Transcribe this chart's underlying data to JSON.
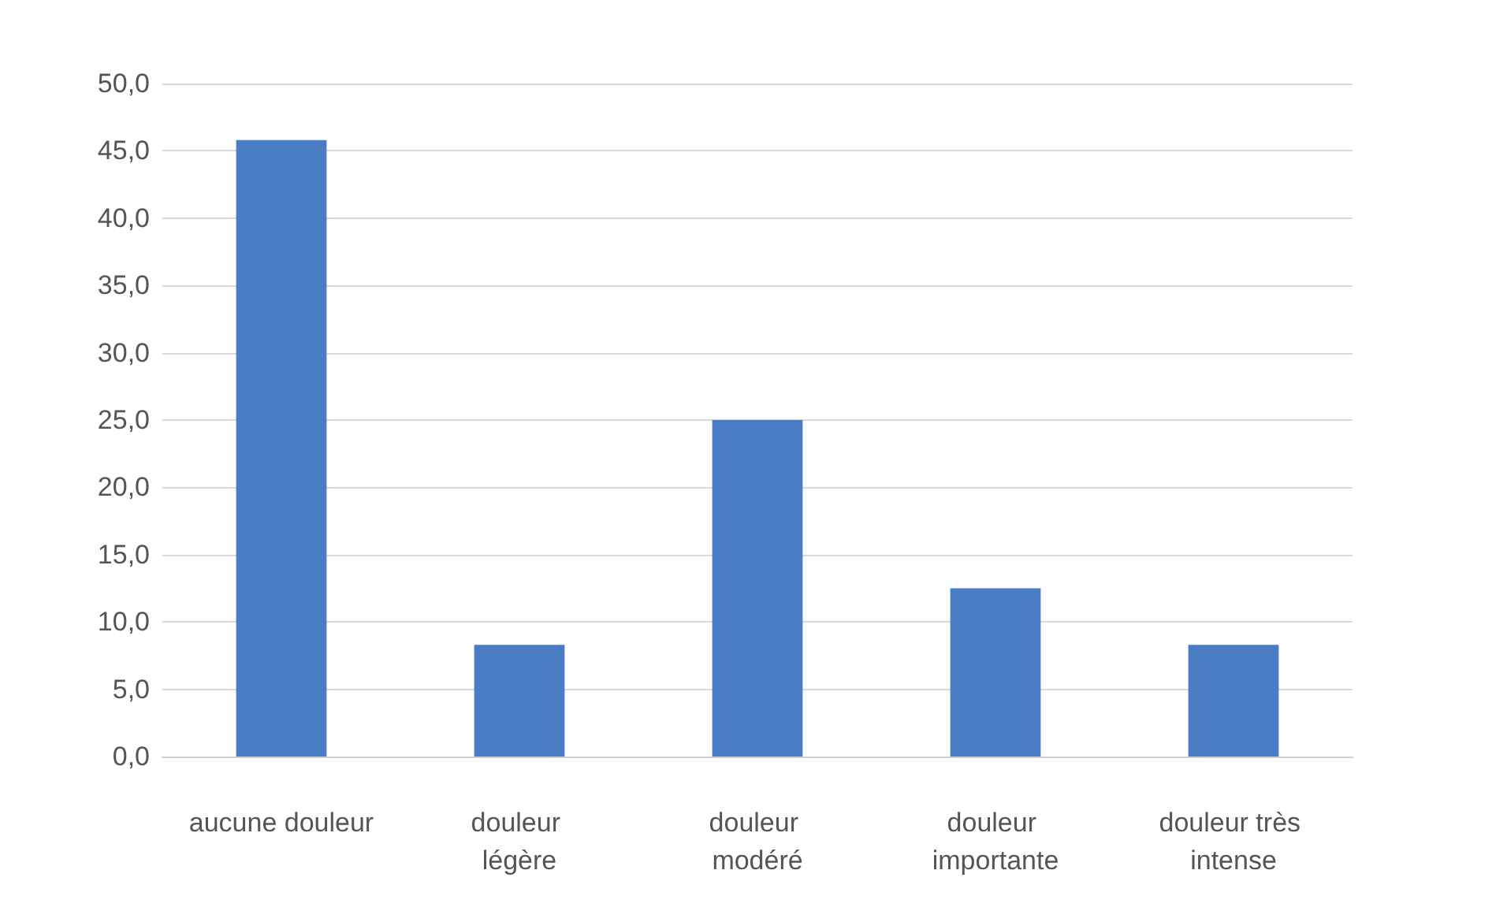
{
  "chart_data": {
    "type": "bar",
    "categories": [
      "aucune douleur",
      "douleur légère",
      "douleur modéré",
      "douleur importante",
      "douleur très intense"
    ],
    "values": [
      45.8,
      8.3,
      25.0,
      12.5,
      8.3
    ],
    "color": "#4a7cc4",
    "ylim": [
      0,
      50
    ],
    "yticks": [
      {
        "value": 0,
        "label": "0,0"
      },
      {
        "value": 5,
        "label": "5,0"
      },
      {
        "value": 10,
        "label": "10,0"
      },
      {
        "value": 15,
        "label": "15,0"
      },
      {
        "value": 20,
        "label": "20,0"
      },
      {
        "value": 25,
        "label": "25,0"
      },
      {
        "value": 30,
        "label": "30,0"
      },
      {
        "value": 35,
        "label": "35,0"
      },
      {
        "value": 40,
        "label": "40,0"
      },
      {
        "value": 45,
        "label": "45,0"
      },
      {
        "value": 50,
        "label": "50,0"
      }
    ],
    "grid": "y"
  }
}
